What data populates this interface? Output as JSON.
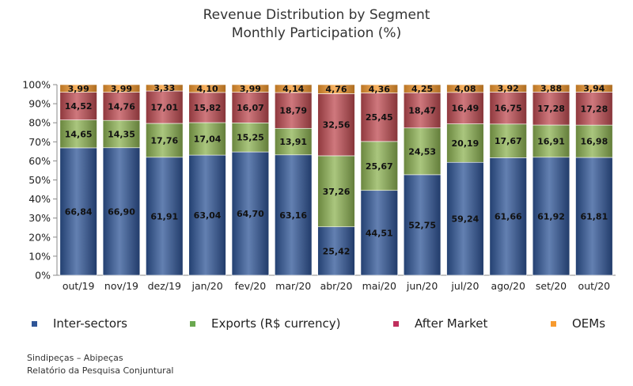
{
  "chart_data": {
    "type": "bar",
    "stacked": true,
    "title": "Revenue Distribution by Segment",
    "subtitle": "Monthly Participation (%)",
    "categories": [
      "out/19",
      "nov/19",
      "dez/19",
      "jan/20",
      "fev/20",
      "mar/20",
      "abr/20",
      "mai/20",
      "jun/20",
      "jul/20",
      "ago/20",
      "set/20",
      "out/20"
    ],
    "series": [
      {
        "name": "Inter-sectors",
        "color": "#2f5597",
        "values": [
          66.84,
          66.9,
          61.91,
          63.04,
          64.7,
          63.16,
          25.42,
          44.51,
          52.75,
          59.24,
          61.66,
          61.92,
          61.81
        ],
        "labels": [
          "66,84",
          "66,90",
          "61,91",
          "63,04",
          "64,70",
          "63,16",
          "25,42",
          "44,51",
          "52,75",
          "59,24",
          "61,66",
          "61,92",
          "61,81"
        ]
      },
      {
        "name": "Exports (R$ currency)",
        "color": "#8db353",
        "values": [
          14.65,
          14.35,
          17.76,
          17.04,
          15.25,
          13.91,
          37.26,
          25.67,
          24.53,
          20.19,
          17.67,
          16.91,
          16.98
        ],
        "labels": [
          "14,65",
          "14,35",
          "17,76",
          "17,04",
          "15,25",
          "13,91",
          "37,26",
          "25,67",
          "24,53",
          "20,19",
          "17,67",
          "16,91",
          "16,98"
        ]
      },
      {
        "name": "After Market",
        "color": "#bf4b51",
        "values": [
          14.52,
          14.76,
          17.01,
          15.82,
          16.07,
          18.79,
          32.56,
          25.45,
          18.47,
          16.49,
          16.75,
          17.28,
          17.28
        ],
        "labels": [
          "14,52",
          "14,76",
          "17,01",
          "15,82",
          "16,07",
          "18,79",
          "32,56",
          "25,45",
          "18,47",
          "16,49",
          "16,75",
          "17,28",
          "17,28"
        ]
      },
      {
        "name": "OEMs",
        "color": "#f79a2e",
        "values": [
          3.99,
          3.99,
          3.33,
          4.1,
          3.99,
          4.14,
          4.76,
          4.36,
          4.25,
          4.08,
          3.92,
          3.88,
          3.94
        ],
        "labels": [
          "3,99",
          "3,99",
          "3,33",
          "4,10",
          "3,99",
          "4,14",
          "4,76",
          "4,36",
          "4,25",
          "4,08",
          "3,92",
          "3,88",
          "3,94"
        ]
      }
    ],
    "ylim": [
      0,
      100
    ],
    "yticks": [
      "0%",
      "10%",
      "20%",
      "30%",
      "40%",
      "50%",
      "60%",
      "70%",
      "80%",
      "90%",
      "100%"
    ],
    "grid": false,
    "legend_position": "bottom",
    "legend_markers": [
      "#2f5597",
      "#6aa84f",
      "#c0305d",
      "#f79a2e"
    ]
  },
  "footer": {
    "line1": "Sindipeças – Abipeças",
    "line2": "Relatório da Pesquisa Conjuntural"
  }
}
